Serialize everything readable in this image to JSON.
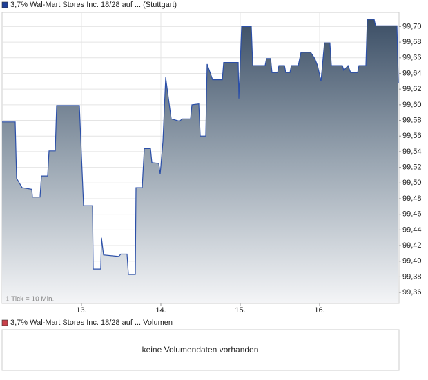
{
  "chart_data": {
    "type": "area",
    "title": "3,7% Wal-Mart Stores Inc. 18/28 auf ... (Stuttgart)",
    "annotation": "1 Tick = 10 Min.",
    "xlim": [
      12,
      17
    ],
    "xticks": [
      {
        "value": 13,
        "label": "13."
      },
      {
        "value": 14,
        "label": "14."
      },
      {
        "value": 15,
        "label": "15."
      },
      {
        "value": 16,
        "label": "16."
      }
    ],
    "ylim": [
      99.346,
      99.718
    ],
    "yticks": [
      {
        "value": 99.36,
        "label": "99,36"
      },
      {
        "value": 99.38,
        "label": "99,38"
      },
      {
        "value": 99.4,
        "label": "99,40"
      },
      {
        "value": 99.42,
        "label": "99,42"
      },
      {
        "value": 99.44,
        "label": "99,44"
      },
      {
        "value": 99.46,
        "label": "99,46"
      },
      {
        "value": 99.48,
        "label": "99,48"
      },
      {
        "value": 99.5,
        "label": "99,50"
      },
      {
        "value": 99.52,
        "label": "99,52"
      },
      {
        "value": 99.54,
        "label": "99,54"
      },
      {
        "value": 99.56,
        "label": "99,56"
      },
      {
        "value": 99.58,
        "label": "99,58"
      },
      {
        "value": 99.6,
        "label": "99,60"
      },
      {
        "value": 99.62,
        "label": "99,62"
      },
      {
        "value": 99.64,
        "label": "99,64"
      },
      {
        "value": 99.66,
        "label": "99,66"
      },
      {
        "value": 99.68,
        "label": "99,68"
      },
      {
        "value": 99.7,
        "label": "99,70"
      }
    ],
    "grid": true,
    "legend_color": "#1f3f99",
    "series": [
      {
        "name": "3,7% Wal-Mart Stores Inc. 18/28 auf ... (Stuttgart)",
        "color": "#2b4fa8",
        "x": [
          12.0,
          12.165,
          12.183,
          12.217,
          12.252,
          12.374,
          12.383,
          12.478,
          12.496,
          12.574,
          12.591,
          12.67,
          12.687,
          12.974,
          13.026,
          13.139,
          13.148,
          13.243,
          13.252,
          13.278,
          13.47,
          13.496,
          13.574,
          13.591,
          13.678,
          13.687,
          13.765,
          13.791,
          13.87,
          13.887,
          13.974,
          13.991,
          14.026,
          14.061,
          14.13,
          14.235,
          14.27,
          14.374,
          14.391,
          14.478,
          14.496,
          14.565,
          14.583,
          14.652,
          14.774,
          14.791,
          14.974,
          14.983,
          15.017,
          15.139,
          15.157,
          15.313,
          15.33,
          15.383,
          15.4,
          15.47,
          15.487,
          15.557,
          15.574,
          15.626,
          15.643,
          15.73,
          15.765,
          15.887,
          15.939,
          15.974,
          16.017,
          16.061,
          16.13,
          16.148,
          16.287,
          16.304,
          16.357,
          16.391,
          16.478,
          16.496,
          16.583,
          16.6,
          16.687,
          16.704,
          16.974,
          16.991
        ],
        "values": [
          99.578,
          99.578,
          99.506,
          99.5,
          99.494,
          99.492,
          99.482,
          99.482,
          99.509,
          99.509,
          99.541,
          99.541,
          99.599,
          99.599,
          99.471,
          99.471,
          99.39,
          99.39,
          99.43,
          99.408,
          99.406,
          99.409,
          99.409,
          99.383,
          99.383,
          99.494,
          99.494,
          99.544,
          99.544,
          99.526,
          99.525,
          99.511,
          99.553,
          99.635,
          99.582,
          99.579,
          99.582,
          99.582,
          99.6,
          99.601,
          99.56,
          99.56,
          99.652,
          99.632,
          99.632,
          99.654,
          99.654,
          99.608,
          99.7,
          99.7,
          99.65,
          99.65,
          99.659,
          99.659,
          99.641,
          99.641,
          99.65,
          99.65,
          99.641,
          99.641,
          99.65,
          99.65,
          99.667,
          99.667,
          99.659,
          99.65,
          99.63,
          99.679,
          99.679,
          99.65,
          99.65,
          99.644,
          99.65,
          99.641,
          99.641,
          99.65,
          99.65,
          99.709,
          99.709,
          99.701,
          99.701,
          99.628
        ]
      }
    ]
  },
  "volume_panel": {
    "legend": "3,7% Wal-Mart Stores Inc. 18/28 auf ... Volumen",
    "legend_color": "#c9404a",
    "message": "keine Volumendaten vorhanden"
  }
}
